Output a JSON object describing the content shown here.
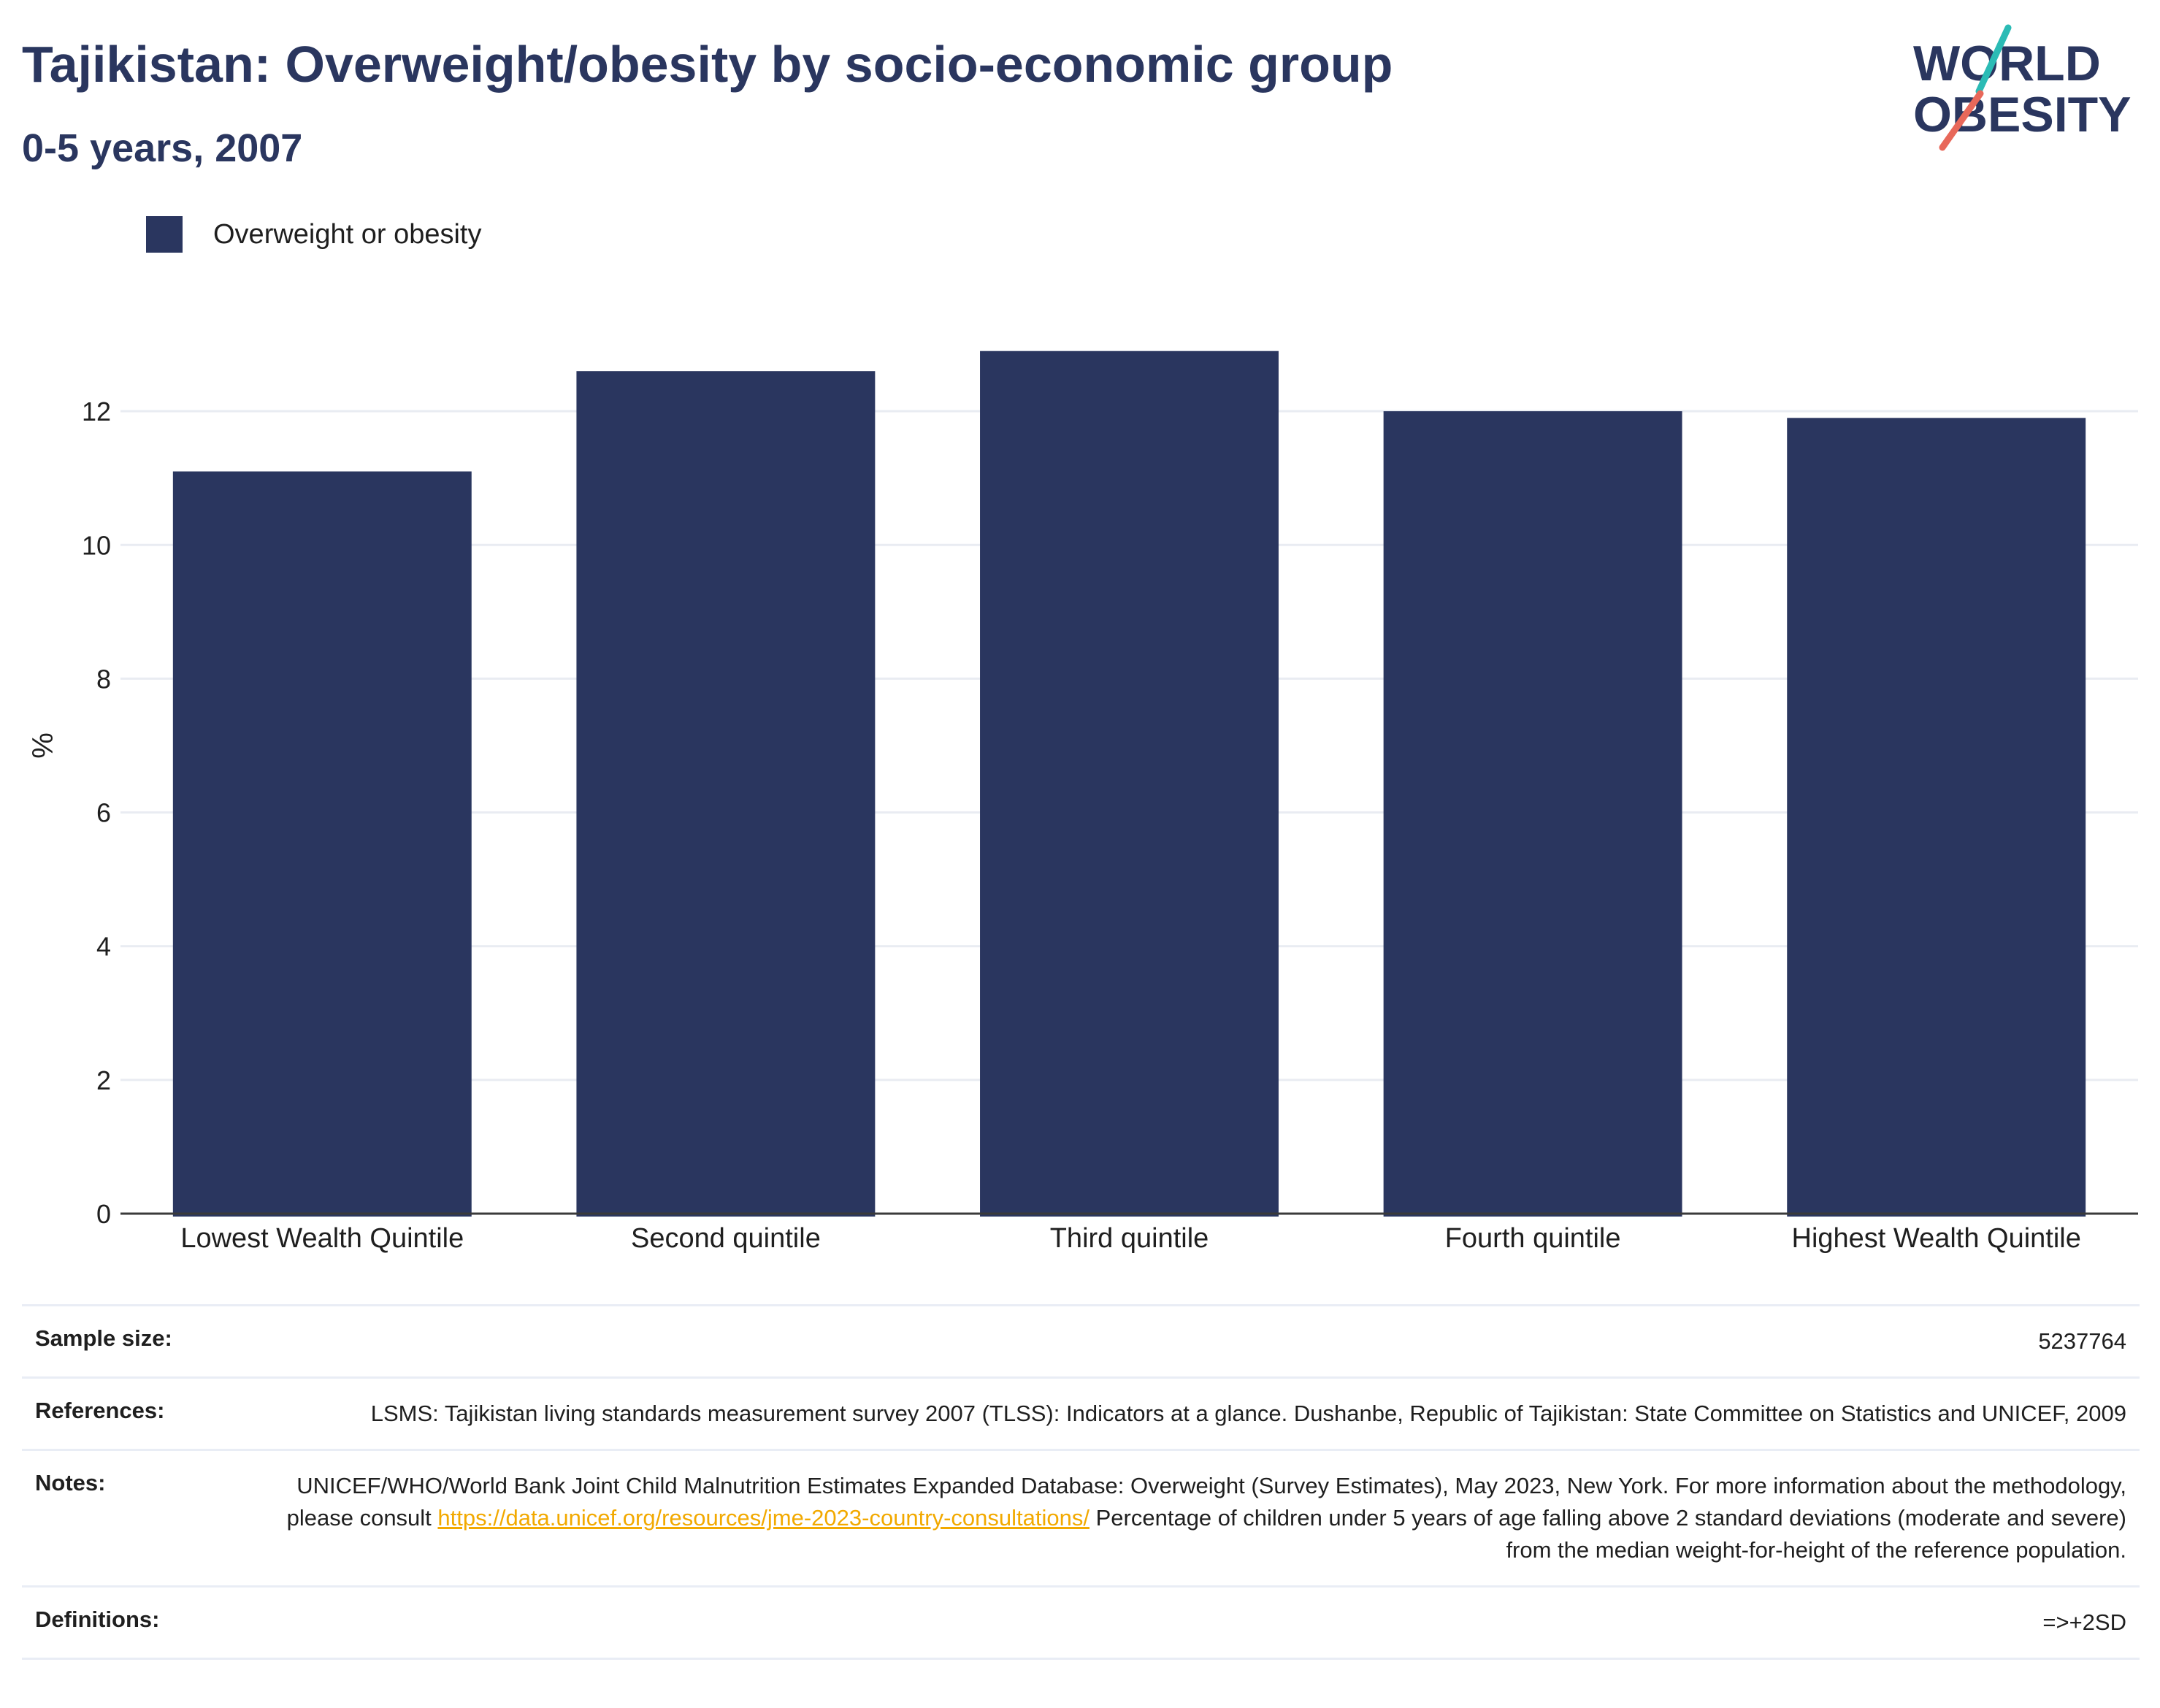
{
  "header": {
    "title": "Tajikistan: Overweight/obesity by socio-economic group",
    "subtitle": "0-5 years, 2007"
  },
  "logo": {
    "line1": "WORLD",
    "line2": "OBESITY",
    "accent_teal": "#2bbbb5",
    "accent_coral": "#e8685a",
    "text_color": "#2a365f"
  },
  "legend": {
    "label": "Overweight or obesity",
    "color": "#2a365f"
  },
  "chart_data": {
    "type": "bar",
    "categories": [
      "Lowest Wealth Quintile",
      "Second quintile",
      "Third quintile",
      "Fourth quintile",
      "Highest Wealth Quintile"
    ],
    "series": [
      {
        "name": "Overweight or obesity",
        "values": [
          11.1,
          12.6,
          12.9,
          12.0,
          11.9
        ],
        "color": "#2a365f"
      }
    ],
    "title": "Tajikistan: Overweight/obesity by socio-economic group",
    "subtitle": "0-5 years, 2007",
    "xlabel": "",
    "ylabel": "%",
    "ylim": [
      0,
      14
    ],
    "yticks": [
      0,
      2,
      4,
      6,
      8,
      10,
      12
    ],
    "grid": true,
    "legend_position": "top-left"
  },
  "info": {
    "sample_size": {
      "label": "Sample size:",
      "value": "5237764"
    },
    "references": {
      "label": "References:",
      "value": "LSMS: Tajikistan living standards measurement survey 2007 (TLSS): Indicators at a glance. Dushanbe, Republic of Tajikistan: State Committee on Statistics and UNICEF, 2009"
    },
    "notes": {
      "label": "Notes:",
      "text_before": "UNICEF/WHO/World Bank Joint Child Malnutrition Estimates Expanded Database: Overweight (Survey Estimates), May 2023, New York. For more information about the methodology, please consult ",
      "link": "https://data.unicef.org/resources/jme-2023-country-consultations/",
      "text_after": " Percentage of children under 5 years of age falling above 2 standard deviations (moderate and severe) from the median weight-for-height of the reference population."
    },
    "definitions": {
      "label": "Definitions:",
      "value": "=>+2SD"
    }
  }
}
